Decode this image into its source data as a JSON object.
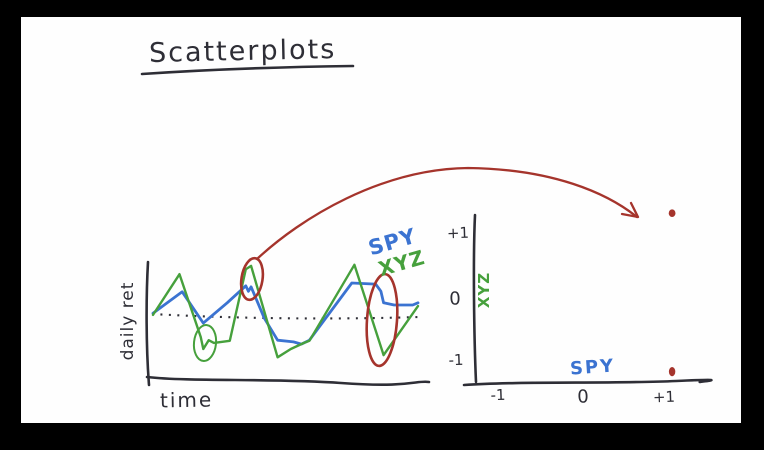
{
  "frame": {
    "background": "#000000",
    "canvas_background": "#fefefe"
  },
  "title": {
    "text": "Scatterplots"
  },
  "colors": {
    "ink": "#2e2e36",
    "spy_blue": "#3b73d1",
    "xyz_green": "#46a03c",
    "annotation_red": "#a5342c"
  },
  "left_chart": {
    "y_axis_label": "daily ret",
    "x_axis_label": "time",
    "spy_label": "SPY",
    "xyz_label": "XYZ"
  },
  "scatter_plot": {
    "y_axis_label": "XYZ",
    "x_axis_label": "SPY",
    "y_ticks": [
      "+1",
      "0",
      "-1"
    ],
    "x_ticks": [
      "-1",
      "0",
      "+1"
    ]
  },
  "chart_data": [
    {
      "type": "line",
      "title": "",
      "xlabel": "time",
      "ylabel": "daily ret",
      "baseline": {
        "value": 0,
        "style": "dotted"
      },
      "series": [
        {
          "name": "SPY",
          "color": "#3b73d1",
          "x": [
            0.0,
            0.11,
            0.19,
            0.28,
            0.35,
            0.36,
            0.37,
            0.42,
            0.47,
            0.53,
            0.56,
            0.59,
            0.75,
            0.84,
            0.86,
            0.87,
            0.91,
            0.98,
            1.0
          ],
          "values": [
            0.05,
            0.44,
            -0.13,
            0.24,
            0.55,
            0.45,
            0.53,
            -0.04,
            -0.44,
            -0.47,
            -0.51,
            -0.44,
            0.6,
            0.58,
            0.45,
            0.24,
            0.2,
            0.2,
            0.24
          ]
        },
        {
          "name": "XYZ",
          "color": "#46a03c",
          "x": [
            0.0,
            0.1,
            0.18,
            0.19,
            0.21,
            0.23,
            0.29,
            0.35,
            0.37,
            0.47,
            0.52,
            0.57,
            0.59,
            0.76,
            0.87,
            1.0
          ],
          "values": [
            0.02,
            0.76,
            -0.38,
            -0.6,
            -0.44,
            -0.49,
            -0.45,
            0.85,
            0.91,
            -0.75,
            -0.6,
            -0.49,
            -0.45,
            0.93,
            -0.71,
            0.18
          ]
        }
      ],
      "annotations": [
        {
          "type": "ellipse",
          "color": "#46a03c",
          "note": "green circle around XYZ dip below zero near t=0.2"
        },
        {
          "type": "ellipse",
          "color": "#a5342c",
          "note": "red circle around joint SPY/XYZ peak near t=0.36"
        },
        {
          "type": "ellipse",
          "color": "#a5342c",
          "note": "tall red circle where SPY flat but XYZ drops near t=0.87"
        },
        {
          "type": "arrow",
          "color": "#a5342c",
          "note": "arrow from circled peak to scatter point at (+1,+1)"
        }
      ]
    },
    {
      "type": "scatter",
      "xlabel": "SPY",
      "ylabel": "XYZ",
      "xlim": [
        -1,
        1
      ],
      "ylim": [
        -1,
        1
      ],
      "x_ticks": [
        -1,
        0,
        1
      ],
      "y_ticks": [
        1,
        0,
        -1
      ],
      "point_color": "#a5342c",
      "points": [
        {
          "x": 1.1,
          "y": 1.3
        },
        {
          "x": 1.1,
          "y": -1.1
        }
      ]
    }
  ]
}
